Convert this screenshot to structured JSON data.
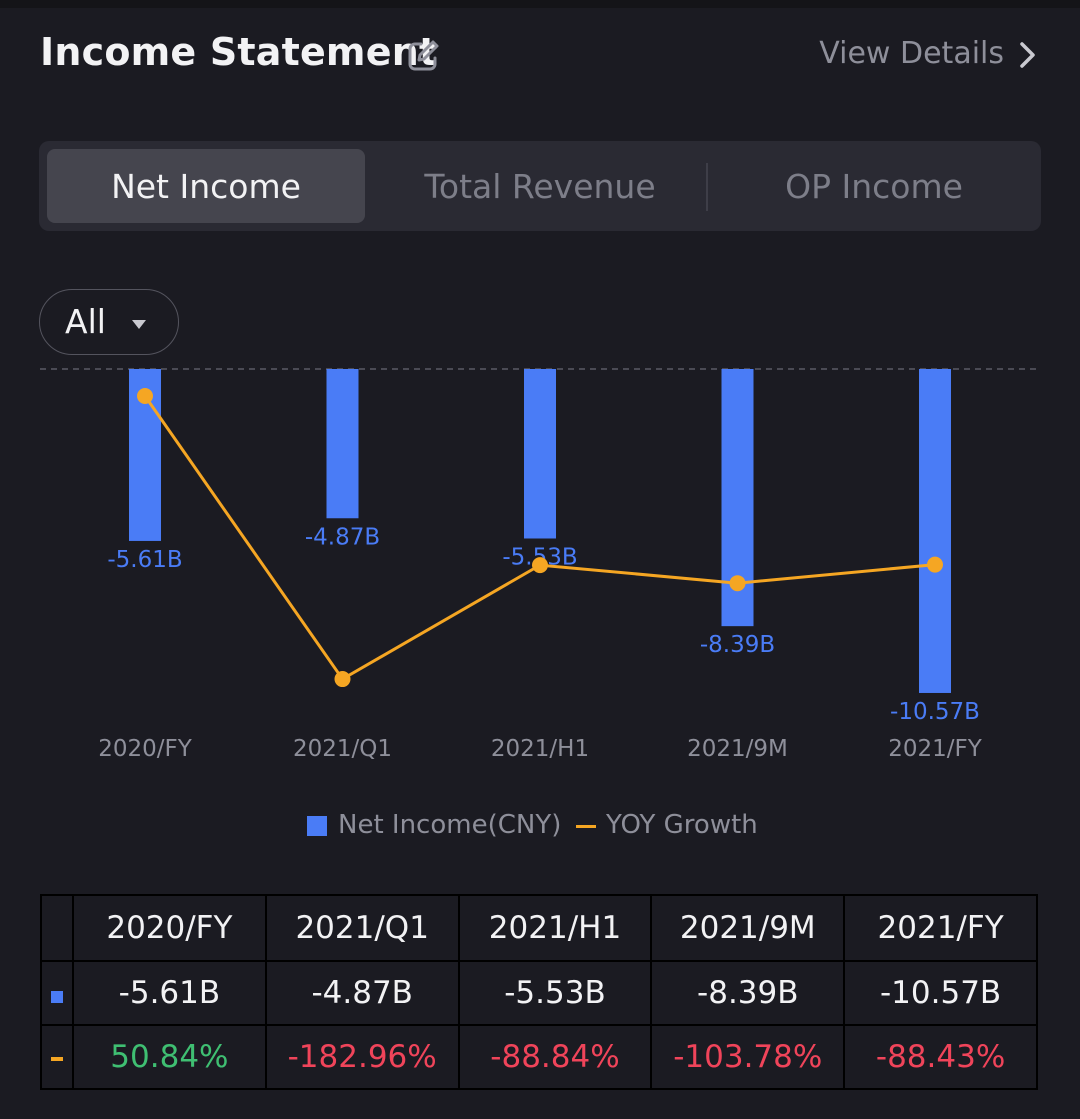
{
  "header": {
    "title": "Income Statement",
    "view_details": "View Details"
  },
  "tabs": [
    {
      "label": "Net Income",
      "active": true
    },
    {
      "label": "Total Revenue",
      "active": false
    },
    {
      "label": "OP Income",
      "active": false
    }
  ],
  "filter": {
    "label": "All"
  },
  "colors": {
    "bar": "#4a7cf6",
    "line": "#f5a623",
    "positive": "#3fbf72",
    "negative": "#f0445a"
  },
  "chart_data": {
    "type": "bar",
    "categories": [
      "2020/FY",
      "2021/Q1",
      "2021/H1",
      "2021/9M",
      "2021/FY"
    ],
    "series": [
      {
        "name": "Net Income(CNY)",
        "type": "bar",
        "values": [
          -5.61,
          -4.87,
          -5.53,
          -8.39,
          -10.57
        ],
        "labels": [
          "-5.61B",
          "-4.87B",
          "-5.53B",
          "-8.39B",
          "-10.57B"
        ]
      },
      {
        "name": "YOY Growth",
        "type": "line",
        "values": [
          50.84,
          -182.96,
          -88.84,
          -103.78,
          -88.43
        ]
      }
    ],
    "legend_position": "bottom"
  },
  "table": {
    "headers": [
      "2020/FY",
      "2021/Q1",
      "2021/H1",
      "2021/9M",
      "2021/FY"
    ],
    "net_income": [
      "-5.61B",
      "-4.87B",
      "-5.53B",
      "-8.39B",
      "-10.57B"
    ],
    "yoy": [
      "50.84%",
      "-182.96%",
      "-88.84%",
      "-103.78%",
      "-88.43%"
    ]
  }
}
